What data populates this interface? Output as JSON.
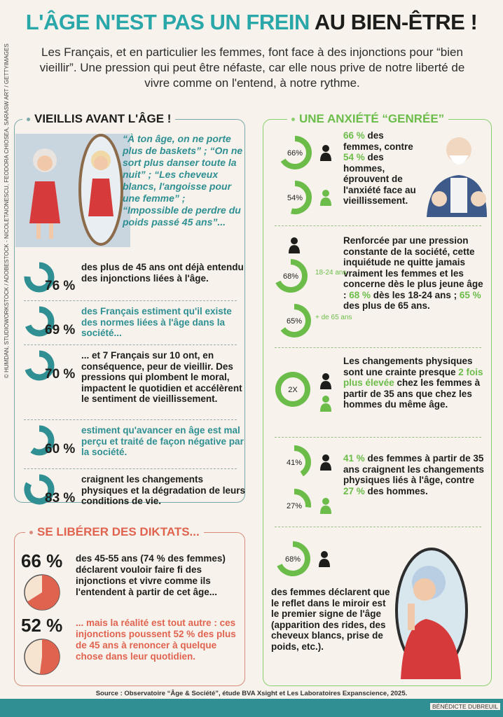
{
  "header": {
    "title_part1": "L'ÂGE N'EST PAS UN FREIN",
    "title_part2": "AU BIEN-ÊTRE !",
    "intro": "Les Français, et en particulier les femmes, font face à des injonctions pour “bien vieillir”. Une pression qui peut être néfaste, car elle nous prive de notre liberté de vivre comme on l'entend, à notre rythme."
  },
  "left_section": {
    "title": "VIEILLIS AVANT L'ÂGE !",
    "quote": "“À ton âge, on ne porte plus de baskets” ; “On ne sort plus danser toute la nuit” ; “Les cheveux blancs, l'angoisse pour une femme” ; “Impossible de perdre du poids passé 45 ans”...",
    "stats": [
      {
        "value": 76,
        "label": "76 %",
        "text": "des plus de 45 ans ont déjà entendu des injonctions liées à l'âge."
      },
      {
        "value": 69,
        "label": "69 %",
        "text": "des Français estiment qu'il existe des normes liées à l'âge dans la société..."
      },
      {
        "value": 70,
        "label": "70 %",
        "text": "... et 7 Français sur 10 ont, en conséquence, peur de vieillir. Des pressions qui plombent le moral, impactent le quotidien et accélèrent le sentiment de vieillissement."
      },
      {
        "value": 60,
        "label": "60 %",
        "text": "estiment qu'avancer en âge est mal perçu et traité de façon négative par la société."
      },
      {
        "value": 83,
        "label": "83 %",
        "text": "craignent les changements physiques et la dégradation de leurs conditions de vie."
      }
    ]
  },
  "bottom_section": {
    "title": "SE LIBÉRER DES DIKTATS...",
    "stats": [
      {
        "value": 66,
        "label": "66 %",
        "text": "des 45-55 ans (74 % des femmes) déclarent vouloir faire fi des injonctions et vivre comme ils l'entendent à partir de cet âge..."
      },
      {
        "value": 52,
        "label": "52 %",
        "text": "... mais la réalité est tout autre : ces injonctions poussent 52 % des plus de 45 ans à renoncer à quelque chose dans leur quotidien."
      }
    ]
  },
  "right_section": {
    "title": "UNE ANXIÉTÉ “GENRÉE”",
    "block1": {
      "rings": [
        {
          "value": 66,
          "label": "66%"
        },
        {
          "value": 54,
          "label": "54%"
        }
      ],
      "text_a": "66 %",
      "text_b": " des femmes, contre ",
      "text_c": "54 %",
      "text_d": " des hommes, éprouvent de l'anxiété face au vieillissement."
    },
    "block2": {
      "rings": [
        {
          "value": 68,
          "label": "68%",
          "side": "18-24 ans"
        },
        {
          "value": 65,
          "label": "65%",
          "side": "+ de 65 ans"
        }
      ],
      "text_a": "Renforcée par une pression constante de la société, cette inquiétude ne quitte jamais vraiment les femmes et les concerne dès le plus jeune âge : ",
      "text_b": "68 %",
      "text_c": " dès les 18-24 ans ; ",
      "text_d": "65 %",
      "text_e": " des plus de 65 ans."
    },
    "block3": {
      "ring_label": "2X",
      "text_a": "Les changements physiques sont une crainte presque ",
      "text_b": "2 fois plus élevée",
      "text_c": " chez les femmes à partir de 35 ans que chez les hommes du même âge."
    },
    "block4": {
      "rings": [
        {
          "value": 41,
          "label": "41%"
        },
        {
          "value": 27,
          "label": "27%"
        }
      ],
      "text_a": "41 %",
      "text_b": " des femmes à partir de 35 ans craignent les changements physiques liés à l'âge, contre ",
      "text_c": "27 %",
      "text_d": " des hommes."
    },
    "block5": {
      "ring": {
        "value": 68,
        "label": "68%"
      },
      "text": "des femmes déclarent que le reflet dans le miroir est le premier signe de l'âge (apparition des rides, des cheveux blancs, prise de poids, etc.)."
    }
  },
  "footer": {
    "source": "Source : Observatoire “Âge & Société”, étude BVA Xsight et Les Laboratoires Expanscience, 2025.",
    "credit": "© HUMDAN, STUDIOWORKSTOCK / ADOBESTOCK - NICOLETAIONESCU, FEODORA CHIOSEA, SARASW ART / GETTYIMAGES",
    "author": "BÉNÉDICTE DUBREUIL"
  },
  "colors": {
    "teal": "#2f8f92",
    "green": "#6cbc4a",
    "red": "#e0634f",
    "title_teal": "#2aa7a9"
  }
}
